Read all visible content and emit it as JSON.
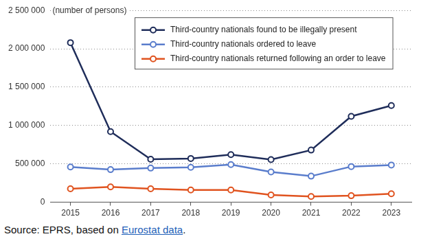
{
  "chart_data": {
    "type": "line",
    "y_label": "(number of persons)",
    "categories": [
      "2015",
      "2016",
      "2017",
      "2018",
      "2019",
      "2020",
      "2021",
      "2022",
      "2023"
    ],
    "series": [
      {
        "name": "Third-country nationals found to be illegally present",
        "color": "#1f2d5a",
        "values": [
          2080000,
          920000,
          560000,
          570000,
          620000,
          555000,
          680000,
          1120000,
          1260000
        ]
      },
      {
        "name": "Third-country nationals ordered to leave",
        "color": "#5a7dcc",
        "values": [
          460000,
          425000,
          445000,
          455000,
          490000,
          395000,
          340000,
          465000,
          485000
        ]
      },
      {
        "name": "Third-country nationals returned following an order to leave",
        "color": "#e0531f",
        "values": [
          175000,
          200000,
          175000,
          160000,
          160000,
          95000,
          75000,
          85000,
          110000
        ]
      }
    ],
    "ylim": [
      0,
      2500000
    ],
    "yticks": [
      0,
      {
        "value": 500000,
        "label": "500 000"
      },
      {
        "value": 1000000,
        "label": "1 000 000"
      },
      {
        "value": 1500000,
        "label": "1 500 000"
      },
      {
        "value": 2000000,
        "label": "2 000 000"
      },
      {
        "value": 2500000,
        "label": "2 500 000"
      }
    ],
    "grid": true,
    "legend": "top",
    "marker": "circle",
    "source": "Source: EPRS, based on Eurostat data.",
    "source_link": "Eurostat data"
  }
}
